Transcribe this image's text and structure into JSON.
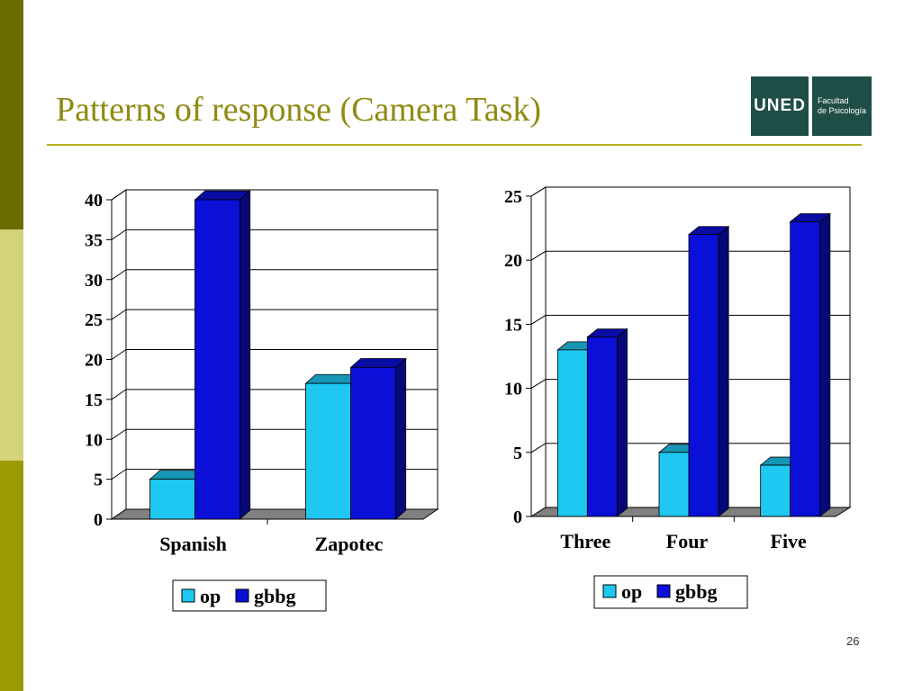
{
  "slide": {
    "title": "Patterns of response (Camera Task)",
    "page_number": "26",
    "title_color": "#8f8a12",
    "rule_color": "#b8b21c",
    "sidebar_colors": [
      "#6b6b00",
      "#d4d27a",
      "#9c9a00"
    ]
  },
  "logo": {
    "main": "UNED",
    "line1": "Facultad",
    "line2": "de Psicología",
    "color": "#1f4e46"
  },
  "colors": {
    "op": "#1ec8f0",
    "gbbg": "#0a10d8",
    "floor": "#808080"
  },
  "chart_data": [
    {
      "type": "bar",
      "categories": [
        "Spanish",
        "Zapotec"
      ],
      "series": [
        {
          "name": "op",
          "values": [
            5,
            17
          ]
        },
        {
          "name": "gbbg",
          "values": [
            40,
            19
          ]
        }
      ],
      "ylim": [
        0,
        40
      ],
      "yticks": [
        "0",
        "5",
        "10",
        "15",
        "20",
        "25",
        "30",
        "35",
        "40"
      ],
      "grid": true,
      "legend": "bottom"
    },
    {
      "type": "bar",
      "categories": [
        "Three",
        "Four",
        "Five"
      ],
      "series": [
        {
          "name": "op",
          "values": [
            13,
            5,
            4
          ]
        },
        {
          "name": "gbbg",
          "values": [
            14,
            22,
            23
          ]
        }
      ],
      "ylim": [
        0,
        25
      ],
      "yticks": [
        "0",
        "5",
        "10",
        "15",
        "20",
        "25"
      ],
      "grid": true,
      "legend": "bottom"
    }
  ]
}
